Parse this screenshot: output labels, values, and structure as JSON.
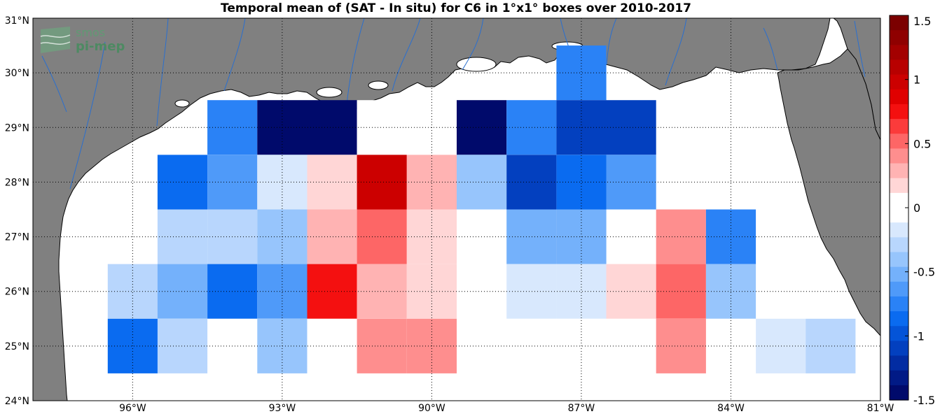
{
  "title": "Temporal mean of (SAT - In situ) for C6 in 1°x1° boxes over 2010-2017",
  "logo": {
    "line1": "smos",
    "line2": "pi-mep"
  },
  "colors": {
    "land": "#808080",
    "ocean": "#ffffff",
    "rivers": "#2a6fcf",
    "grid": "#000000"
  },
  "map": {
    "lon_range": [
      -98.0,
      -81.0
    ],
    "lat_range": [
      24.0,
      31.0
    ],
    "lon_ticks": [
      -96,
      -93,
      -90,
      -87,
      -84,
      -81
    ],
    "lon_tick_labels": [
      "96°W",
      "93°W",
      "90°W",
      "87°W",
      "84°W",
      "81°W"
    ],
    "lat_ticks": [
      24,
      25,
      26,
      27,
      28,
      29,
      30,
      31
    ],
    "lat_tick_labels": [
      "24°N",
      "25°N",
      "26°N",
      "27°N",
      "28°N",
      "29°N",
      "30°N",
      "31°N"
    ],
    "grid": "dotted"
  },
  "colorbar": {
    "range": [
      -1.5,
      1.5
    ],
    "ticks": [
      1.5,
      1,
      0.5,
      0,
      -0.5,
      -1,
      -1.5
    ],
    "tick_labels": [
      "1.5",
      "1",
      "0.5",
      "0",
      "-0.5",
      "-1",
      "-1.5"
    ],
    "colors": [
      "#7b0000",
      "#8f0000",
      "#a30000",
      "#b80000",
      "#cc0000",
      "#e00000",
      "#f41010",
      "#fb3b3b",
      "#fd6666",
      "#fe8e8e",
      "#ffb3b3",
      "#ffd6d6",
      "#ffffff",
      "#ffffff",
      "#d8e8fd",
      "#b8d6fd",
      "#97c5fc",
      "#74b1fb",
      "#4f9af9",
      "#2a82f6",
      "#0a6bf0",
      "#0454d8",
      "#0340bf",
      "#022ca2",
      "#011a86",
      "#000a6b"
    ]
  },
  "chart_data": {
    "type": "heatmap",
    "title": "Temporal mean of (SAT - In situ) for C6 in 1°x1° boxes over 2010-2017",
    "xlabel": "",
    "ylabel": "",
    "units": "",
    "boxes": [
      {
        "lon": -87,
        "lat": 30,
        "value": -0.75
      },
      {
        "lon": -94,
        "lat": 29,
        "value": -0.75
      },
      {
        "lon": -93,
        "lat": 29,
        "value": -1.5
      },
      {
        "lon": -92,
        "lat": 29,
        "value": -1.5
      },
      {
        "lon": -91,
        "lat": 29,
        "value": 0.0
      },
      {
        "lon": -90,
        "lat": 29,
        "value": 0.0
      },
      {
        "lon": -89,
        "lat": 29,
        "value": -1.5
      },
      {
        "lon": -88,
        "lat": 29,
        "value": -0.8
      },
      {
        "lon": -87,
        "lat": 29,
        "value": -1.1
      },
      {
        "lon": -86,
        "lat": 29,
        "value": -1.1
      },
      {
        "lon": -95,
        "lat": 28,
        "value": -0.85
      },
      {
        "lon": -94,
        "lat": 28,
        "value": -0.65
      },
      {
        "lon": -93,
        "lat": 28,
        "value": -0.2
      },
      {
        "lon": -92,
        "lat": 28,
        "value": 0.15
      },
      {
        "lon": -91,
        "lat": 28,
        "value": 1.0
      },
      {
        "lon": -90,
        "lat": 28,
        "value": 0.3
      },
      {
        "lon": -89,
        "lat": 28,
        "value": -0.4
      },
      {
        "lon": -88,
        "lat": 28,
        "value": -1.05
      },
      {
        "lon": -87,
        "lat": 28,
        "value": -0.85
      },
      {
        "lon": -86,
        "lat": 28,
        "value": -0.65
      },
      {
        "lon": -95,
        "lat": 27,
        "value": -0.3
      },
      {
        "lon": -94,
        "lat": 27,
        "value": -0.3
      },
      {
        "lon": -93,
        "lat": 27,
        "value": -0.35
      },
      {
        "lon": -92,
        "lat": 27,
        "value": 0.3
      },
      {
        "lon": -91,
        "lat": 27,
        "value": 0.55
      },
      {
        "lon": -90,
        "lat": 27,
        "value": 0.15
      },
      {
        "lon": -88,
        "lat": 27,
        "value": -0.5
      },
      {
        "lon": -87,
        "lat": 27,
        "value": -0.5
      },
      {
        "lon": -85,
        "lat": 27,
        "value": 0.45
      },
      {
        "lon": -84,
        "lat": 27,
        "value": -0.7
      },
      {
        "lon": -96,
        "lat": 26,
        "value": -0.3
      },
      {
        "lon": -95,
        "lat": 26,
        "value": -0.55
      },
      {
        "lon": -94,
        "lat": 26,
        "value": -0.85
      },
      {
        "lon": -93,
        "lat": 26,
        "value": -0.65
      },
      {
        "lon": -92,
        "lat": 26,
        "value": 0.75
      },
      {
        "lon": -91,
        "lat": 26,
        "value": 0.3
      },
      {
        "lon": -90,
        "lat": 26,
        "value": 0.15
      },
      {
        "lon": -88,
        "lat": 26,
        "value": -0.2
      },
      {
        "lon": -87,
        "lat": 26,
        "value": -0.2
      },
      {
        "lon": -86,
        "lat": 26,
        "value": 0.15
      },
      {
        "lon": -85,
        "lat": 26,
        "value": 0.55
      },
      {
        "lon": -84,
        "lat": 26,
        "value": -0.35
      },
      {
        "lon": -96,
        "lat": 25,
        "value": -0.85
      },
      {
        "lon": -95,
        "lat": 25,
        "value": -0.3
      },
      {
        "lon": -93,
        "lat": 25,
        "value": -0.35
      },
      {
        "lon": -91,
        "lat": 25,
        "value": 0.45
      },
      {
        "lon": -90,
        "lat": 25,
        "value": 0.45
      },
      {
        "lon": -85,
        "lat": 25,
        "value": 0.45
      },
      {
        "lon": -83,
        "lat": 25,
        "value": -0.2
      },
      {
        "lon": -82,
        "lat": 25,
        "value": -0.3
      }
    ]
  }
}
